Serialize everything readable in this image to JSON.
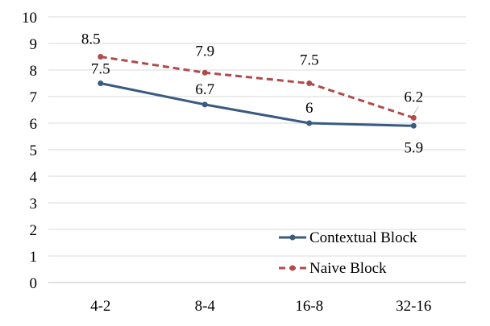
{
  "chart_data": {
    "type": "line",
    "categories": [
      "4-2",
      "8-4",
      "16-8",
      "32-16"
    ],
    "ylim": [
      0,
      10
    ],
    "yticks": [
      "0",
      "1",
      "2",
      "3",
      "4",
      "5",
      "6",
      "7",
      "8",
      "9",
      "10"
    ],
    "grid": true,
    "legend_position": "bottom-right",
    "series": [
      {
        "name": "Contextual Block",
        "values": [
          7.5,
          6.7,
          6,
          5.9
        ],
        "labels": [
          "7.5",
          "6.7",
          "6",
          "5.9"
        ],
        "color": "#3a5a82",
        "style": "solid"
      },
      {
        "name": "Naive Block",
        "values": [
          8.5,
          7.9,
          7.5,
          6.2
        ],
        "labels": [
          "8.5",
          "7.9",
          "7.5",
          "6.2"
        ],
        "color": "#b24a4a",
        "style": "dashed"
      }
    ]
  }
}
